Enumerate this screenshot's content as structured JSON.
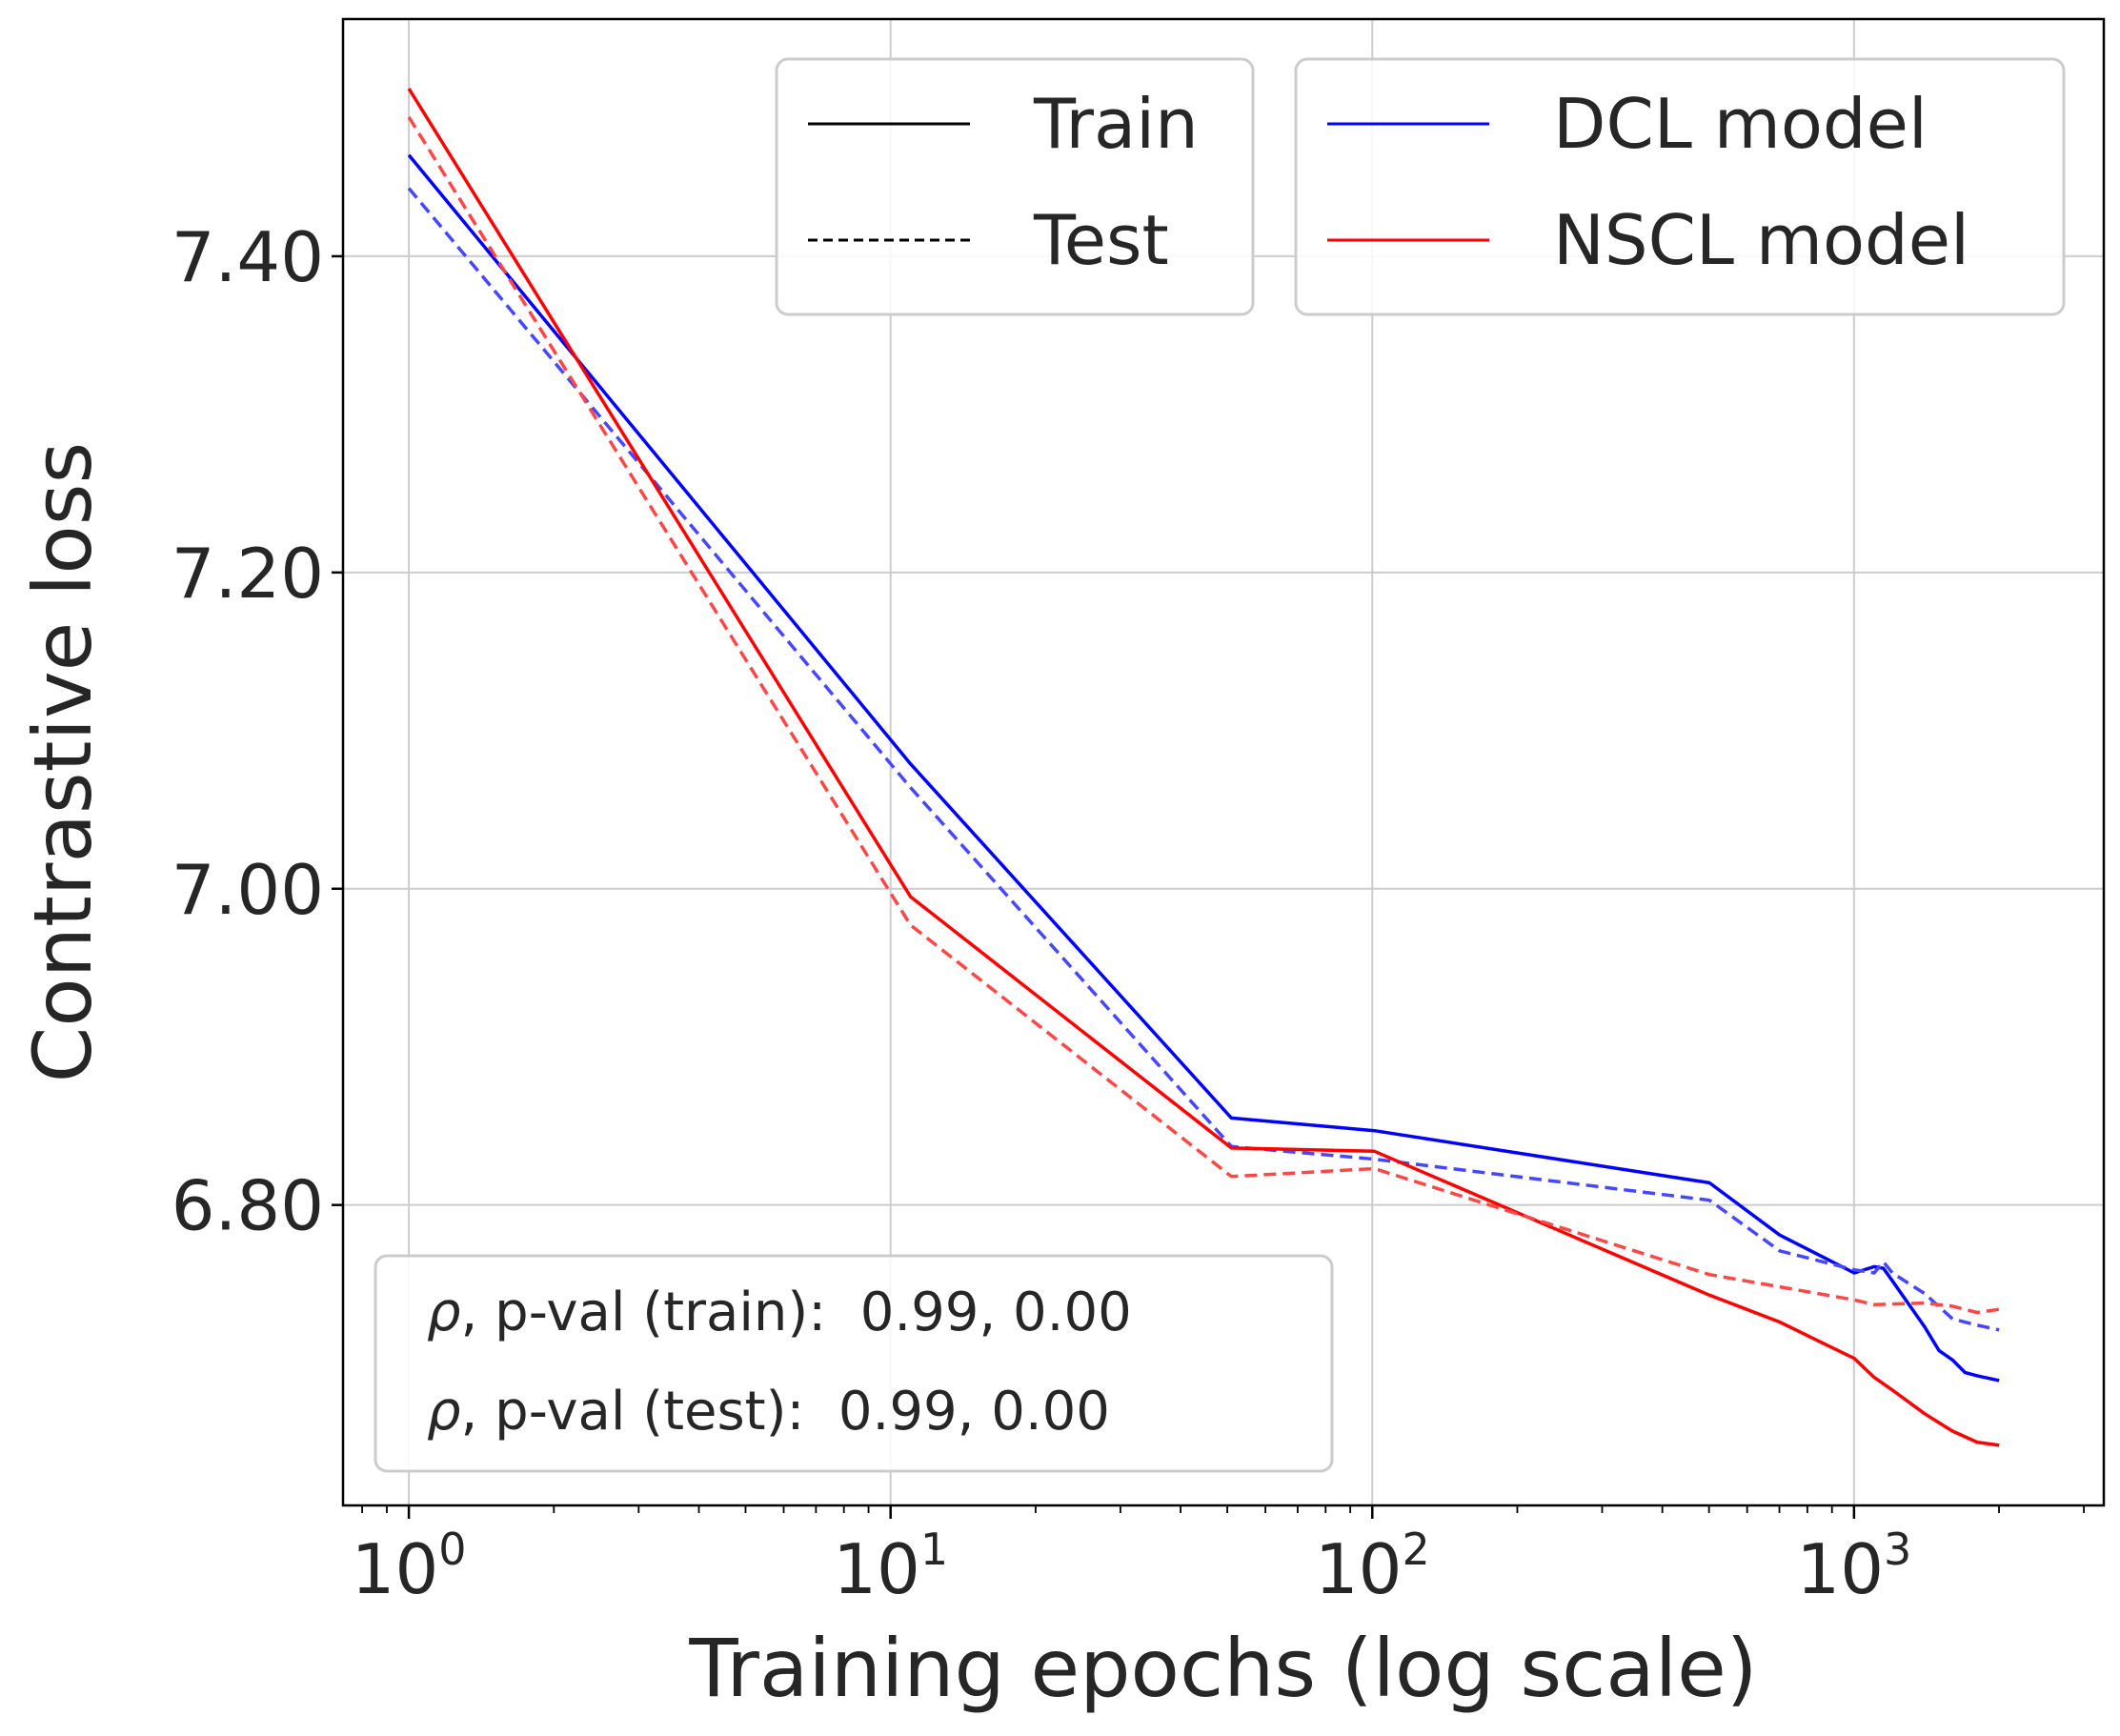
{
  "chart_data": {
    "type": "line",
    "xlabel": "Training epochs (log scale)",
    "ylabel": "Contrastive loss",
    "xscale": "log",
    "xlim": [
      0.73,
      3300
    ],
    "ylim": [
      6.61,
      7.55
    ],
    "x_ticks": [
      {
        "base": "10",
        "exp": "0",
        "value": 1
      },
      {
        "base": "10",
        "exp": "1",
        "value": 10
      },
      {
        "base": "10",
        "exp": "2",
        "value": 100
      },
      {
        "base": "10",
        "exp": "3",
        "value": 1000
      }
    ],
    "y_ticks": [
      {
        "label": "6.80",
        "value": 6.8
      },
      {
        "label": "7.00",
        "value": 7.0
      },
      {
        "label": "7.20",
        "value": 7.2
      },
      {
        "label": "7.40",
        "value": 7.4
      }
    ],
    "grid": true,
    "series": [
      {
        "name": "DCL model (Train)",
        "color": "#0000ff",
        "style": "solid",
        "x": [
          1,
          11,
          51,
          101,
          501,
          701,
          1001,
          1101,
          1151,
          1201,
          1301,
          1401,
          1501,
          1601,
          1701,
          1801,
          2001
        ],
        "y": [
          7.464,
          7.079,
          6.855,
          6.847,
          6.814,
          6.781,
          6.757,
          6.761,
          6.76,
          6.752,
          6.737,
          6.723,
          6.708,
          6.702,
          6.694,
          6.692,
          6.689
        ]
      },
      {
        "name": "DCL model (Test)",
        "color": "#4747ff",
        "style": "dashed",
        "x": [
          1,
          11,
          51,
          101,
          501,
          701,
          1001,
          1101,
          1151,
          1201,
          1401,
          1601,
          1801,
          2001
        ],
        "y": [
          7.443,
          7.064,
          6.837,
          6.829,
          6.803,
          6.771,
          6.759,
          6.757,
          6.764,
          6.757,
          6.744,
          6.728,
          6.724,
          6.721
        ]
      },
      {
        "name": "NSCL model (Train)",
        "color": "#ff0000",
        "style": "solid",
        "x": [
          1,
          11,
          51,
          101,
          501,
          701,
          1001,
          1101,
          1201,
          1401,
          1601,
          1801,
          2001
        ],
        "y": [
          7.506,
          6.995,
          6.836,
          6.834,
          6.743,
          6.726,
          6.703,
          6.691,
          6.683,
          6.668,
          6.657,
          6.65,
          6.648
        ]
      },
      {
        "name": "NSCL model (Test)",
        "color": "#ff4747",
        "style": "dashed",
        "x": [
          1,
          11,
          51,
          101,
          501,
          1001,
          1101,
          1401,
          1601,
          1801,
          2001
        ],
        "y": [
          7.488,
          6.977,
          6.818,
          6.823,
          6.756,
          6.74,
          6.737,
          6.738,
          6.736,
          6.732,
          6.734
        ]
      }
    ],
    "legend_style": {
      "placement": "top-right",
      "entries": [
        {
          "label": "Train",
          "style": "solid",
          "color": "#000000"
        },
        {
          "label": "Test",
          "style": "dashed",
          "color": "#000000"
        }
      ]
    },
    "legend_model": {
      "placement": "top-right",
      "entries": [
        {
          "label": "DCL model",
          "color": "#0000ff"
        },
        {
          "label": "NSCL model",
          "color": "#ff0000"
        }
      ]
    },
    "stats": {
      "placement": "bottom-left",
      "symbol": "ρ",
      "train_text": ", p-val (train):  0.99, 0.00",
      "test_text": ", p-val (test):  0.99, 0.00"
    }
  }
}
